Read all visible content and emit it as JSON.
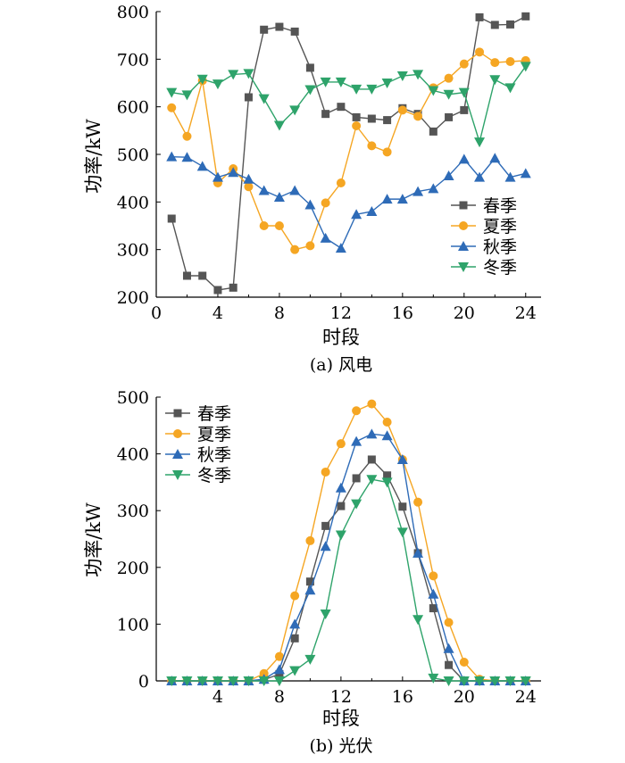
{
  "chart_data": [
    {
      "type": "line",
      "title": "",
      "caption": "(a)  风电",
      "xlabel": "时段",
      "ylabel": "功率/kW",
      "xlim": [
        0,
        25
      ],
      "ylim": [
        200,
        800
      ],
      "xticks": [
        0,
        4,
        8,
        12,
        16,
        20,
        24
      ],
      "yticks": [
        200,
        300,
        400,
        500,
        600,
        700,
        800
      ],
      "legend_position": "bottom-right",
      "x": [
        1,
        2,
        3,
        4,
        5,
        6,
        7,
        8,
        9,
        10,
        11,
        12,
        13,
        14,
        15,
        16,
        17,
        18,
        19,
        20,
        21,
        22,
        23,
        24
      ],
      "series": [
        {
          "name": "春季",
          "color": "#555555",
          "marker": "square",
          "values": [
            365,
            245,
            245,
            215,
            220,
            620,
            762,
            768,
            758,
            682,
            585,
            600,
            578,
            575,
            572,
            597,
            585,
            548,
            578,
            593,
            788,
            772,
            773,
            790
          ]
        },
        {
          "name": "夏季",
          "color": "#f5a623",
          "marker": "circle",
          "values": [
            598,
            538,
            655,
            440,
            470,
            432,
            350,
            350,
            300,
            308,
            398,
            440,
            560,
            518,
            505,
            593,
            580,
            640,
            660,
            690,
            715,
            693,
            695,
            697
          ]
        },
        {
          "name": "秋季",
          "color": "#2e6bb7",
          "marker": "triangle-up",
          "values": [
            495,
            494,
            475,
            452,
            462,
            448,
            424,
            410,
            424,
            394,
            324,
            303,
            374,
            380,
            406,
            406,
            422,
            428,
            455,
            490,
            452,
            492,
            452,
            460
          ]
        },
        {
          "name": "冬季",
          "color": "#2ea36a",
          "marker": "triangle-down",
          "values": [
            630,
            625,
            658,
            648,
            668,
            670,
            617,
            561,
            593,
            636,
            652,
            652,
            637,
            637,
            650,
            665,
            668,
            634,
            626,
            630,
            526,
            657,
            640,
            685
          ]
        }
      ]
    },
    {
      "type": "line",
      "title": "",
      "caption": "(b)  光伏",
      "xlabel": "时段",
      "ylabel": "功率/kW",
      "xlim": [
        0,
        25
      ],
      "ylim": [
        0,
        500
      ],
      "xticks": [
        4,
        8,
        12,
        16,
        20,
        24
      ],
      "yticks": [
        0,
        100,
        200,
        300,
        400,
        500
      ],
      "legend_position": "top-left",
      "x": [
        1,
        2,
        3,
        4,
        5,
        6,
        7,
        8,
        9,
        10,
        11,
        12,
        13,
        14,
        15,
        16,
        17,
        18,
        19,
        20,
        21,
        22,
        23,
        24
      ],
      "series": [
        {
          "name": "春季",
          "color": "#555555",
          "marker": "square",
          "values": [
            0,
            0,
            0,
            0,
            0,
            0,
            2,
            12,
            75,
            175,
            273,
            308,
            357,
            390,
            362,
            307,
            225,
            128,
            28,
            0,
            0,
            0,
            0,
            0
          ]
        },
        {
          "name": "夏季",
          "color": "#f5a623",
          "marker": "circle",
          "values": [
            0,
            0,
            0,
            0,
            0,
            0,
            13,
            43,
            150,
            247,
            368,
            418,
            476,
            488,
            456,
            390,
            315,
            185,
            103,
            33,
            3,
            0,
            0,
            0
          ]
        },
        {
          "name": "秋季",
          "color": "#2e6bb7",
          "marker": "triangle-up",
          "values": [
            0,
            0,
            0,
            0,
            0,
            0,
            3,
            20,
            100,
            160,
            237,
            340,
            422,
            435,
            432,
            390,
            225,
            153,
            57,
            0,
            0,
            0,
            0,
            0
          ]
        },
        {
          "name": "冬季",
          "color": "#2ea36a",
          "marker": "triangle-down",
          "values": [
            0,
            0,
            0,
            0,
            0,
            0,
            0,
            0,
            18,
            38,
            118,
            257,
            312,
            355,
            350,
            262,
            108,
            5,
            0,
            0,
            0,
            0,
            0,
            0
          ]
        }
      ]
    }
  ]
}
